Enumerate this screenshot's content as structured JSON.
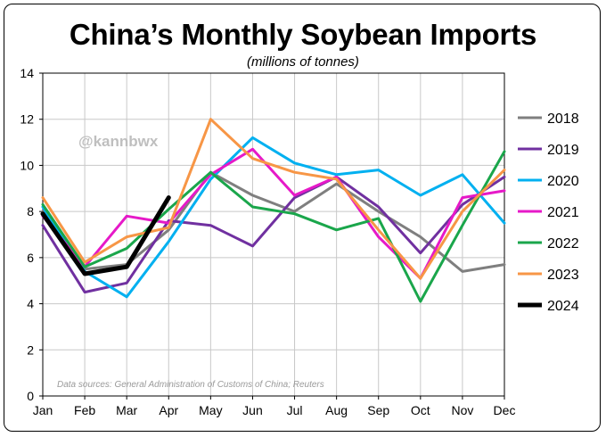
{
  "title": "China’s Monthly Soybean Imports",
  "subtitle": "(millions of tonnes)",
  "watermark": "@kannbwx",
  "source": "Data sources: General Administration of Customs of China; Reuters",
  "chart_data": {
    "type": "line",
    "title": "China’s Monthly Soybean Imports",
    "subtitle": "(millions of tonnes)",
    "ylabel": "",
    "xlabel": "",
    "ylim": [
      0,
      14
    ],
    "yticks": [
      0,
      2,
      4,
      6,
      8,
      10,
      12,
      14
    ],
    "grid": true,
    "legend_position": "right",
    "categories": [
      "Jan",
      "Feb",
      "Mar",
      "Apr",
      "May",
      "Jun",
      "Jul",
      "Aug",
      "Sep",
      "Oct",
      "Nov",
      "Dec"
    ],
    "series": [
      {
        "name": "2018",
        "color": "#7f7f7f",
        "values": [
          8.0,
          5.5,
          5.7,
          7.2,
          9.7,
          8.7,
          8.0,
          9.2,
          8.0,
          6.9,
          5.4,
          5.7
        ]
      },
      {
        "name": "2019",
        "color": "#7030a0",
        "values": [
          7.4,
          4.5,
          4.9,
          7.6,
          7.4,
          6.5,
          8.6,
          9.5,
          8.2,
          6.2,
          8.3,
          9.5
        ]
      },
      {
        "name": "2020",
        "color": "#00b0f0",
        "values": [
          8.2,
          5.4,
          4.3,
          6.7,
          9.4,
          11.2,
          10.1,
          9.6,
          9.8,
          8.7,
          9.6,
          7.5
        ]
      },
      {
        "name": "2021",
        "color": "#e619c8",
        "values": [
          7.8,
          5.6,
          7.8,
          7.5,
          9.6,
          10.7,
          8.7,
          9.5,
          6.9,
          5.1,
          8.6,
          8.9
        ]
      },
      {
        "name": "2022",
        "color": "#1aa64b",
        "values": [
          8.3,
          5.6,
          6.4,
          8.1,
          9.7,
          8.2,
          7.9,
          7.2,
          7.7,
          4.1,
          7.4,
          10.6
        ]
      },
      {
        "name": "2023",
        "color": "#f79646",
        "values": [
          8.6,
          5.8,
          6.9,
          7.3,
          12.0,
          10.3,
          9.7,
          9.4,
          7.2,
          5.1,
          8.0,
          9.8
        ]
      },
      {
        "name": "2024",
        "color": "#000000",
        "values": [
          7.9,
          5.3,
          5.6,
          8.6,
          null,
          null,
          null,
          null,
          null,
          null,
          null,
          null
        ]
      }
    ]
  }
}
